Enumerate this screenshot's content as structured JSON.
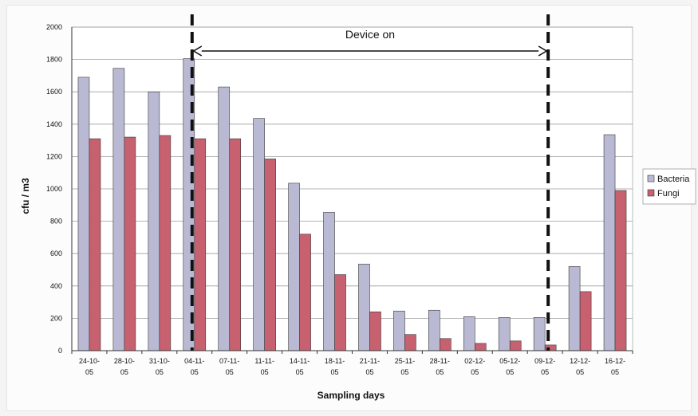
{
  "chart_data": {
    "type": "bar",
    "title": "",
    "xlabel": "Sampling days",
    "ylabel": "cfu / m3",
    "ylim": [
      0,
      2000
    ],
    "ytick_step": 200,
    "grid": true,
    "legend_position": "right",
    "categories": [
      [
        "24-10-",
        "05"
      ],
      [
        "28-10-",
        "05"
      ],
      [
        "31-10-",
        "05"
      ],
      [
        "04-11-",
        "05"
      ],
      [
        "07-11-",
        "05"
      ],
      [
        "11-11-",
        "05"
      ],
      [
        "14-11-",
        "05"
      ],
      [
        "18-11-",
        "05"
      ],
      [
        "21-11-",
        "05"
      ],
      [
        "25-11-",
        "05"
      ],
      [
        "28-11-",
        "05"
      ],
      [
        "02-12-",
        "05"
      ],
      [
        "05-12-",
        "05"
      ],
      [
        "09-12-",
        "05"
      ],
      [
        "12-12-",
        "05"
      ],
      [
        "16-12-",
        "05"
      ]
    ],
    "series": [
      {
        "name": "Bacteria",
        "color": "#b9b9d3",
        "values": [
          1690,
          1745,
          1600,
          1805,
          1630,
          1435,
          1035,
          855,
          535,
          245,
          250,
          210,
          205,
          205,
          520,
          1335
        ]
      },
      {
        "name": "Fungi",
        "color": "#c7606f",
        "values": [
          1310,
          1320,
          1330,
          1310,
          1310,
          1185,
          720,
          470,
          240,
          100,
          75,
          45,
          60,
          35,
          365,
          990
        ]
      }
    ],
    "annotation": {
      "text": "Device on",
      "from_index": 3,
      "to_index": 13
    }
  }
}
